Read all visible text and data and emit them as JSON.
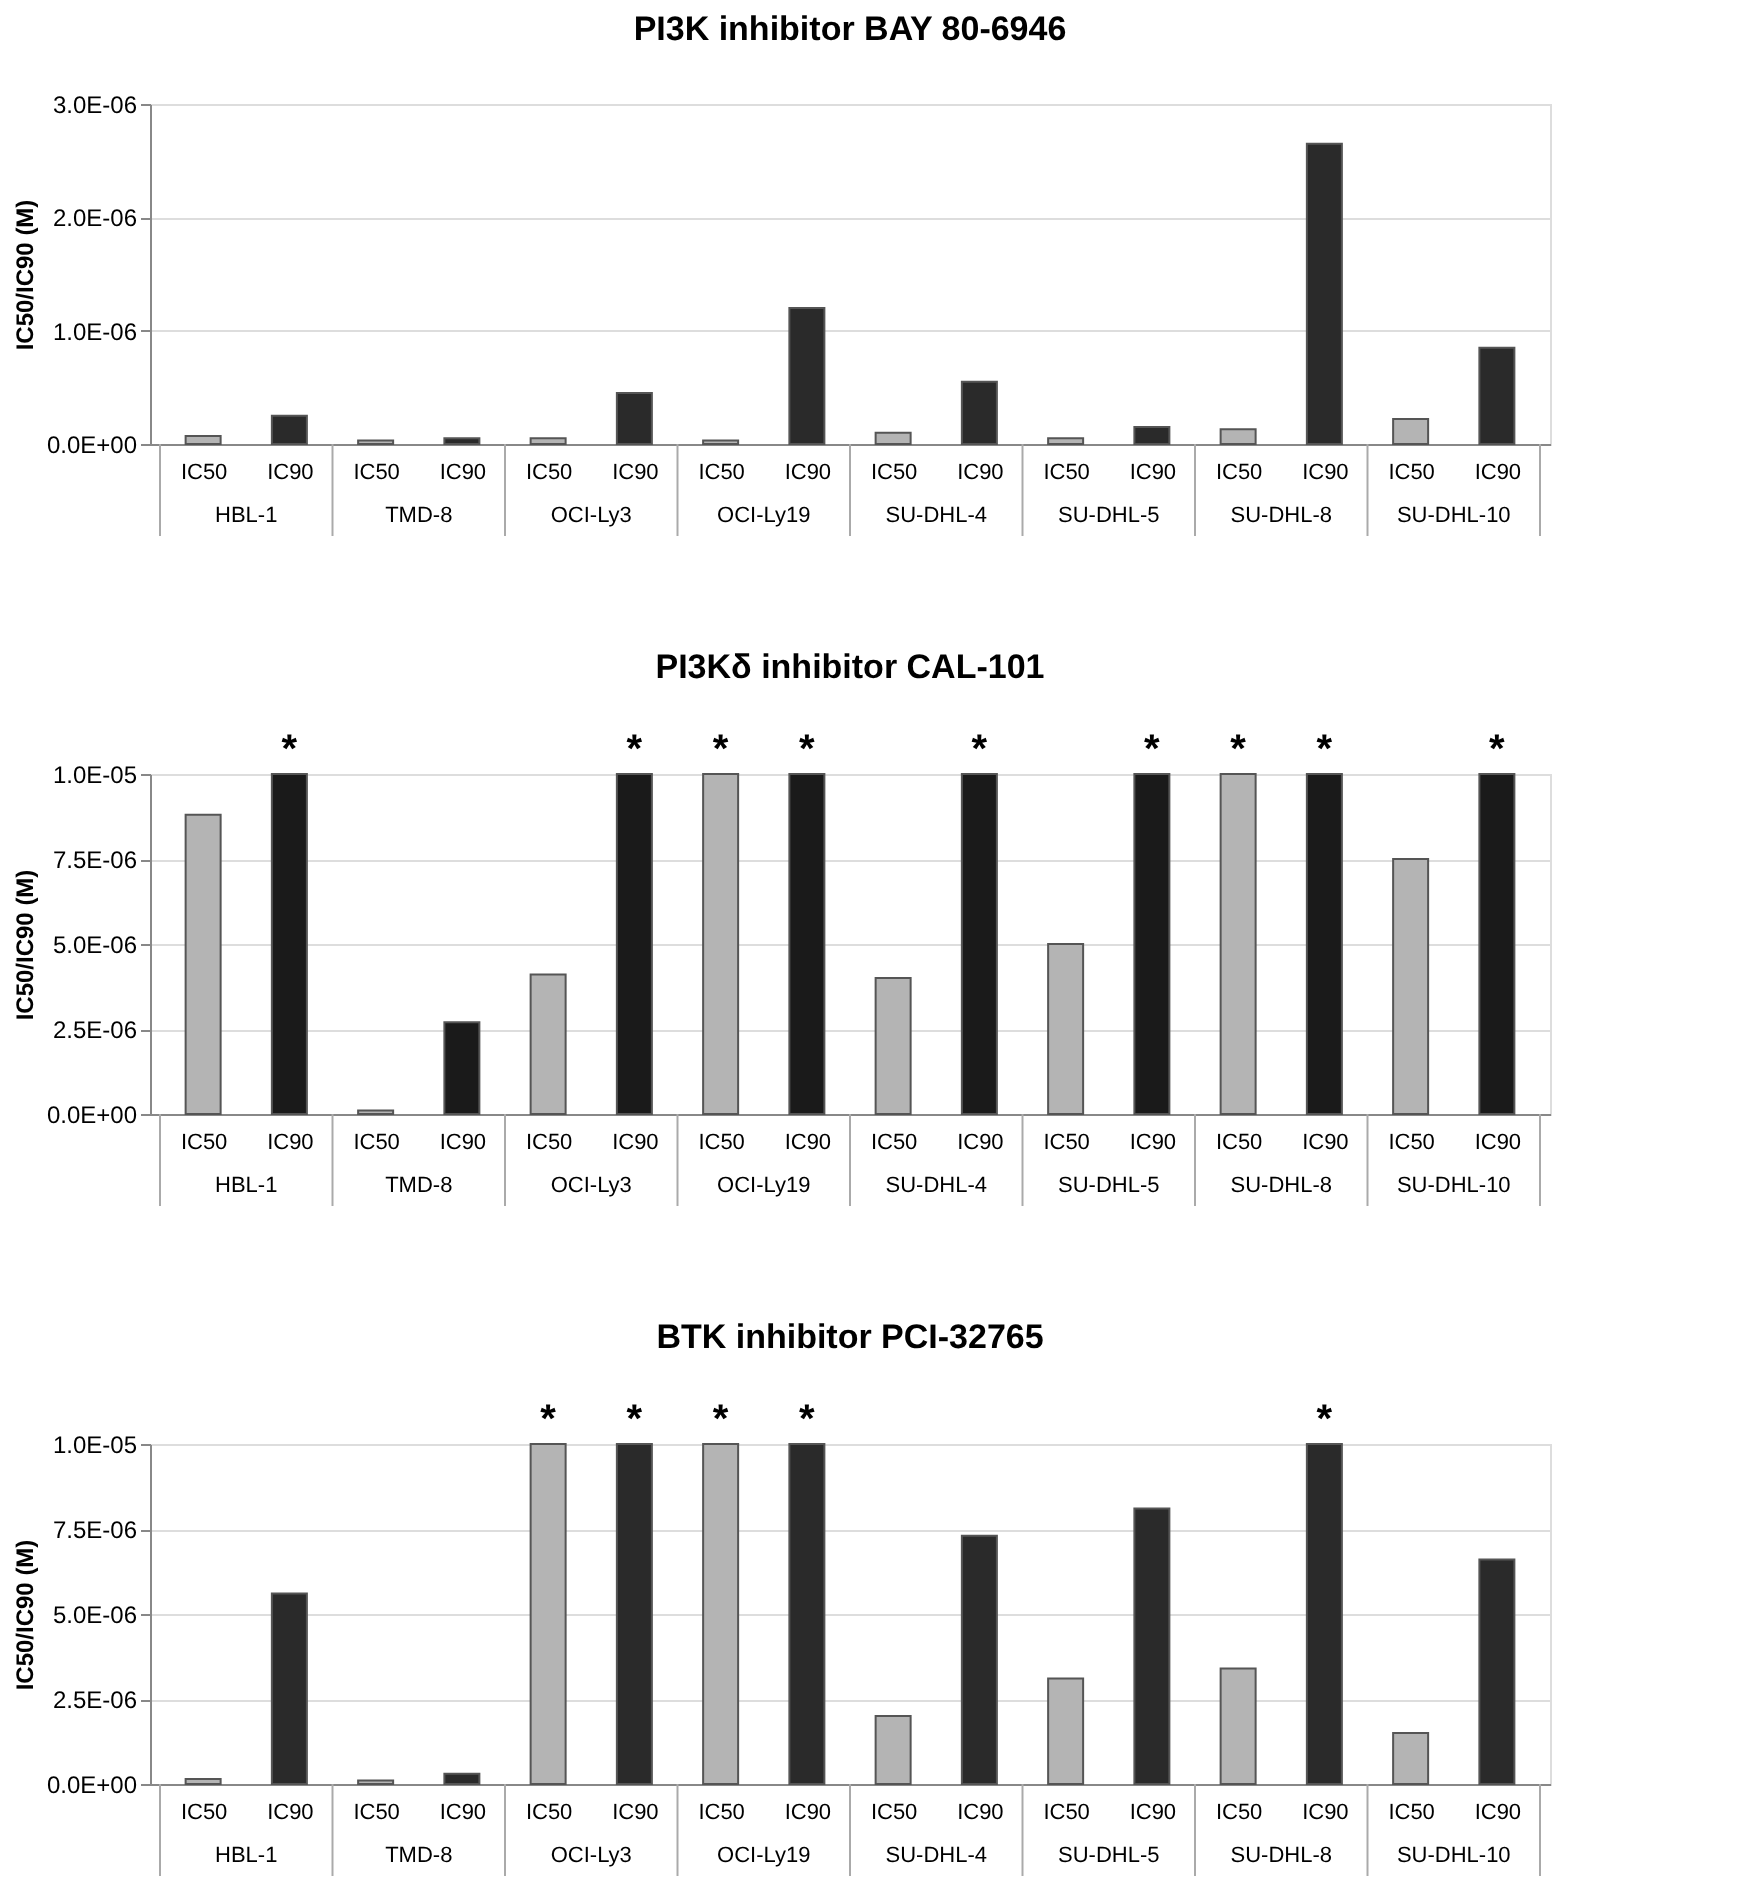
{
  "chart_data": [
    {
      "type": "bar",
      "title": "PI3K inhibitor BAY 80-6946",
      "ylabel": "IC50/IC90 (M)",
      "categories": [
        "IC50",
        "IC90",
        "IC50",
        "IC90",
        "IC50",
        "IC90",
        "IC50",
        "IC90",
        "IC50",
        "IC90",
        "IC50",
        "IC90",
        "IC50",
        "IC90",
        "IC50",
        "IC90"
      ],
      "annotations": [
        "HBL-1",
        "TMD-8",
        "OCI-Ly3",
        "OCI-Ly19",
        "SU-DHL-4",
        "SU-DHL-5",
        "SU-DHL-8",
        "SU-DHL-10"
      ],
      "values": [
        7e-08,
        2.5e-07,
        3e-08,
        5e-08,
        5e-08,
        4.5e-07,
        3e-08,
        1.2e-06,
        1e-07,
        5.5e-07,
        5e-08,
        1.5e-07,
        1.3e-07,
        2.65e-06,
        2.2e-07,
        8.5e-07
      ],
      "colors": [
        "#b4b4b4",
        "#2a2a2a",
        "#b4b4b4",
        "#2a2a2a",
        "#b4b4b4",
        "#2a2a2a",
        "#b4b4b4",
        "#2a2a2a",
        "#b4b4b4",
        "#2a2a2a",
        "#b4b4b4",
        "#2a2a2a",
        "#b4b4b4",
        "#2a2a2a",
        "#b4b4b4",
        "#2a2a2a"
      ],
      "ylim": [
        0,
        3e-06
      ],
      "yticks": [
        {
          "value": 0,
          "label": "0.0E+00"
        },
        {
          "value": 1e-06,
          "label": "1.0E-06"
        },
        {
          "value": 2e-06,
          "label": "2.0E-06"
        },
        {
          "value": 3e-06,
          "label": "3.0E-06"
        }
      ],
      "grid": "y"
    },
    {
      "type": "bar",
      "title": "PI3Kδ inhibitor CAL-101",
      "ylabel": "IC50/IC90 (M)",
      "categories": [
        "IC50",
        "IC90",
        "IC50",
        "IC90",
        "IC50",
        "IC90",
        "IC50",
        "IC90",
        "IC50",
        "IC90",
        "IC50",
        "IC90",
        "IC50",
        "IC90",
        "IC50",
        "IC90"
      ],
      "annotations": [
        "HBL-1",
        "TMD-8",
        "OCI-Ly3",
        "OCI-Ly19",
        "SU-DHL-4",
        "SU-DHL-5",
        "SU-DHL-8",
        "SU-DHL-10"
      ],
      "values": [
        8.8e-06,
        1e-05,
        1e-07,
        2.7e-06,
        4.1e-06,
        1e-05,
        1e-05,
        1e-05,
        4e-06,
        1e-05,
        5e-06,
        1e-05,
        1e-05,
        1e-05,
        7.5e-06,
        1e-05
      ],
      "value_labels": [
        null,
        "*",
        null,
        null,
        null,
        "*",
        "*",
        "*",
        null,
        "*",
        null,
        "*",
        "*",
        "*",
        null,
        "*"
      ],
      "colors": [
        "#b4b4b4",
        "#1a1a1a",
        "#b4b4b4",
        "#1a1a1a",
        "#b4b4b4",
        "#1a1a1a",
        "#b4b4b4",
        "#1a1a1a",
        "#b4b4b4",
        "#1a1a1a",
        "#b4b4b4",
        "#1a1a1a",
        "#b4b4b4",
        "#1a1a1a",
        "#b4b4b4",
        "#1a1a1a"
      ],
      "ylim": [
        0,
        1e-05
      ],
      "yticks": [
        {
          "value": 0,
          "label": "0.0E+00"
        },
        {
          "value": 2.5e-06,
          "label": "2.5E-06"
        },
        {
          "value": 5e-06,
          "label": "5.0E-06"
        },
        {
          "value": 7.5e-06,
          "label": "7.5E-06"
        },
        {
          "value": 1e-05,
          "label": "1.0E-05"
        }
      ],
      "grid": "y"
    },
    {
      "type": "bar",
      "title": "BTK inhibitor PCI-32765",
      "ylabel": "IC50/IC90 (M)",
      "categories": [
        "IC50",
        "IC90",
        "IC50",
        "IC90",
        "IC50",
        "IC90",
        "IC50",
        "IC90",
        "IC50",
        "IC90",
        "IC50",
        "IC90",
        "IC50",
        "IC90",
        "IC50",
        "IC90"
      ],
      "annotations": [
        "HBL-1",
        "TMD-8",
        "OCI-Ly3",
        "OCI-Ly19",
        "SU-DHL-4",
        "SU-DHL-5",
        "SU-DHL-8",
        "SU-DHL-10"
      ],
      "values": [
        1.5e-07,
        5.6e-06,
        1e-07,
        3e-07,
        1e-05,
        1e-05,
        1e-05,
        1e-05,
        2e-06,
        7.3e-06,
        3.1e-06,
        8.1e-06,
        3.4e-06,
        1e-05,
        1.5e-06,
        6.6e-06
      ],
      "value_labels": [
        null,
        null,
        null,
        null,
        "*",
        "*",
        "*",
        "*",
        null,
        null,
        null,
        null,
        null,
        "*",
        null,
        null
      ],
      "colors": [
        "#b4b4b4",
        "#2a2a2a",
        "#b4b4b4",
        "#2a2a2a",
        "#b4b4b4",
        "#2a2a2a",
        "#b4b4b4",
        "#2a2a2a",
        "#b4b4b4",
        "#2a2a2a",
        "#b4b4b4",
        "#2a2a2a",
        "#b4b4b4",
        "#2a2a2a",
        "#b4b4b4",
        "#2a2a2a"
      ],
      "ylim": [
        0,
        1e-05
      ],
      "yticks": [
        {
          "value": 0,
          "label": "0.0E+00"
        },
        {
          "value": 2.5e-06,
          "label": "2.5E-06"
        },
        {
          "value": 5e-06,
          "label": "5.0E-06"
        },
        {
          "value": 7.5e-06,
          "label": "7.5E-06"
        },
        {
          "value": 1e-05,
          "label": "1.0E-05"
        }
      ],
      "grid": "y"
    }
  ]
}
